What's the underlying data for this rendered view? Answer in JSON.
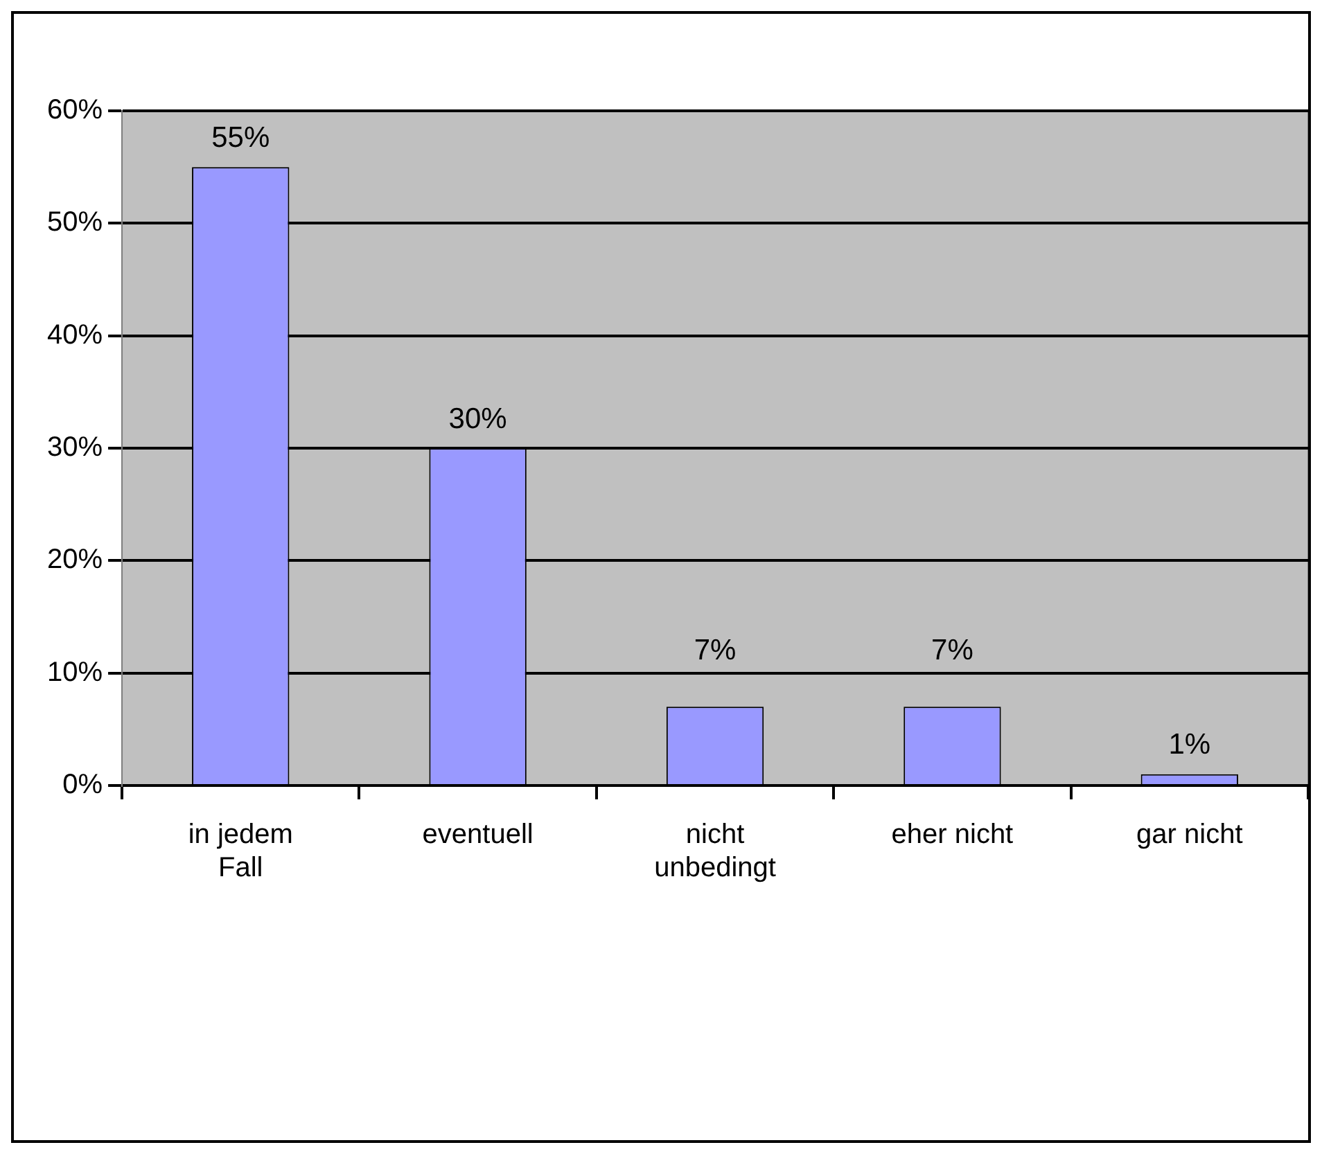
{
  "chart_data": {
    "type": "bar",
    "categories": [
      "in jedem Fall",
      "eventuell",
      "nicht unbedingt",
      "eher nicht",
      "gar nicht"
    ],
    "values": [
      55,
      30,
      7,
      7,
      1
    ],
    "value_labels": [
      "55%",
      "30%",
      "7%",
      "7%",
      "1%"
    ],
    "color": "#9999ff",
    "ylim": [
      0,
      60
    ],
    "yticks": [
      {
        "value": 0,
        "label": "0%"
      },
      {
        "value": 10,
        "label": "10%"
      },
      {
        "value": 20,
        "label": "20%"
      },
      {
        "value": 30,
        "label": "30%"
      },
      {
        "value": 40,
        "label": "40%"
      },
      {
        "value": 50,
        "label": "50%"
      },
      {
        "value": 60,
        "label": "60%"
      }
    ],
    "grid": "y",
    "legend": false
  }
}
